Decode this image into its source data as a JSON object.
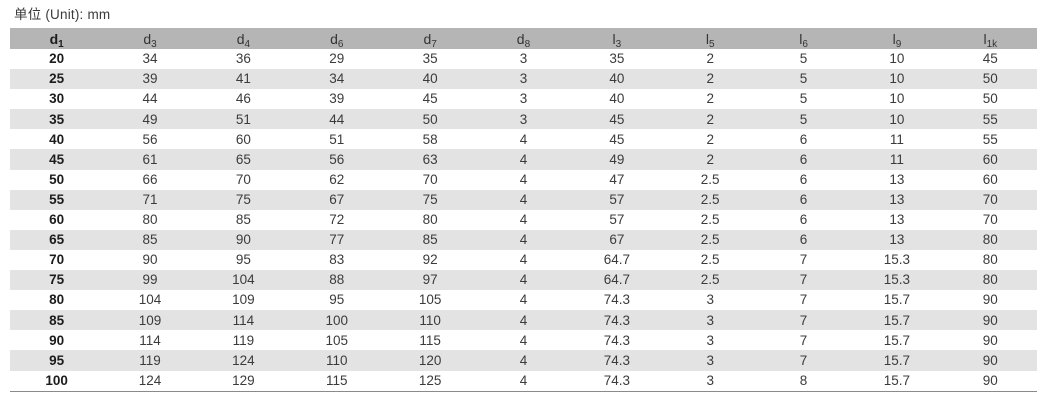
{
  "title": "单位 (Unit): mm",
  "table": {
    "columns": [
      {
        "base": "d",
        "sub": "1"
      },
      {
        "base": "d",
        "sub": "3"
      },
      {
        "base": "d",
        "sub": "4"
      },
      {
        "base": "d",
        "sub": "6"
      },
      {
        "base": "d",
        "sub": "7"
      },
      {
        "base": "d",
        "sub": "8"
      },
      {
        "base": "l",
        "sub": "3"
      },
      {
        "base": "l",
        "sub": "5"
      },
      {
        "base": "l",
        "sub": "6"
      },
      {
        "base": "l",
        "sub": "9"
      },
      {
        "base": "l",
        "sub": "1k"
      }
    ],
    "rows": [
      [
        "20",
        "34",
        "36",
        "29",
        "35",
        "3",
        "35",
        "2",
        "5",
        "10",
        "45"
      ],
      [
        "25",
        "39",
        "41",
        "34",
        "40",
        "3",
        "40",
        "2",
        "5",
        "10",
        "50"
      ],
      [
        "30",
        "44",
        "46",
        "39",
        "45",
        "3",
        "40",
        "2",
        "5",
        "10",
        "50"
      ],
      [
        "35",
        "49",
        "51",
        "44",
        "50",
        "3",
        "45",
        "2",
        "5",
        "10",
        "55"
      ],
      [
        "40",
        "56",
        "60",
        "51",
        "58",
        "4",
        "45",
        "2",
        "6",
        "11",
        "55"
      ],
      [
        "45",
        "61",
        "65",
        "56",
        "63",
        "4",
        "49",
        "2",
        "6",
        "11",
        "60"
      ],
      [
        "50",
        "66",
        "70",
        "62",
        "70",
        "4",
        "47",
        "2.5",
        "6",
        "13",
        "60"
      ],
      [
        "55",
        "71",
        "75",
        "67",
        "75",
        "4",
        "57",
        "2.5",
        "6",
        "13",
        "70"
      ],
      [
        "60",
        "80",
        "85",
        "72",
        "80",
        "4",
        "57",
        "2.5",
        "6",
        "13",
        "70"
      ],
      [
        "65",
        "85",
        "90",
        "77",
        "85",
        "4",
        "67",
        "2.5",
        "6",
        "13",
        "80"
      ],
      [
        "70",
        "90",
        "95",
        "83",
        "92",
        "4",
        "64.7",
        "2.5",
        "7",
        "15.3",
        "80"
      ],
      [
        "75",
        "99",
        "104",
        "88",
        "97",
        "4",
        "64.7",
        "2.5",
        "7",
        "15.3",
        "80"
      ],
      [
        "80",
        "104",
        "109",
        "95",
        "105",
        "4",
        "74.3",
        "3",
        "7",
        "15.7",
        "90"
      ],
      [
        "85",
        "109",
        "114",
        "100",
        "110",
        "4",
        "74.3",
        "3",
        "7",
        "15.7",
        "90"
      ],
      [
        "90",
        "114",
        "119",
        "105",
        "115",
        "4",
        "74.3",
        "3",
        "7",
        "15.7",
        "90"
      ],
      [
        "95",
        "119",
        "124",
        "110",
        "120",
        "4",
        "74.3",
        "3",
        "7",
        "15.7",
        "90"
      ],
      [
        "100",
        "124",
        "129",
        "115",
        "125",
        "4",
        "74.3",
        "3",
        "8",
        "15.7",
        "90"
      ]
    ]
  },
  "colors": {
    "header_bg": "#b5b5b5",
    "stripe_bg": "#e3e3e3",
    "text": "#3b3b3b",
    "bold_text": "#1c1c1c",
    "bottom_rule": "#8a8a8a"
  }
}
